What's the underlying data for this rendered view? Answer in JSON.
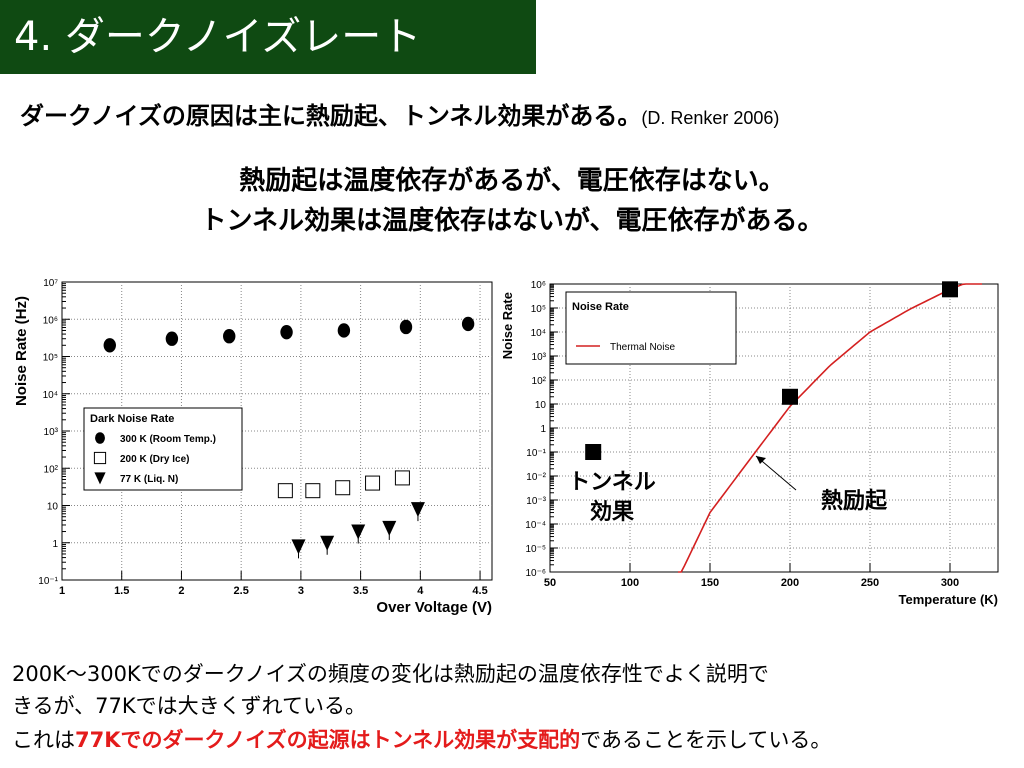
{
  "slide": {
    "title": "4. ダークノイズレート",
    "lead": "ダークノイズの原因は主に熱励起、トンネル効果がある。",
    "lead_cite": "(D. Renker 2006)",
    "line1": "熱励起は温度依存があるが、電圧依存はない。",
    "line2": "トンネル効果は温度依存はないが、電圧依存がある。",
    "bottom1": "200K～300Kでのダークノイズの頻度の変化は熱励起の温度依存性でよく説明で",
    "bottom2": "きるが、77Kでは大きくずれている。",
    "bottom3_pre": "これは",
    "bottom3_red": "77Kでのダークノイズの起源はトンネル効果が支配的",
    "bottom3_post": "であることを示している。",
    "colors": {
      "title_bg": "#0f4a12",
      "accent_red": "#e41b1b",
      "curve": "#d42020"
    }
  },
  "chart_data": [
    {
      "type": "scatter",
      "xlabel": "Over Voltage (V)",
      "ylabel": "Noise Rate (Hz)",
      "xlim": [
        1,
        4.6
      ],
      "ylim": [
        0.1,
        10000000
      ],
      "yscale": "log",
      "grid": true,
      "xticks": [
        "1",
        "1.5",
        "2",
        "2.5",
        "3",
        "3.5",
        "4",
        "4.5"
      ],
      "yticks": [
        "10⁻¹",
        "1",
        "10",
        "10²",
        "10³",
        "10⁴",
        "10⁵",
        "10⁶",
        "10⁷"
      ],
      "legend_title": "Dark Noise Rate",
      "legend_position": "middle-left",
      "series": [
        {
          "name": "300 K (Room Temp.)",
          "marker": "circle",
          "x": [
            1.4,
            1.92,
            2.4,
            2.88,
            3.36,
            3.88,
            4.4
          ],
          "y": [
            200000,
            300000,
            350000,
            450000,
            500000,
            620000,
            750000
          ]
        },
        {
          "name": "200 K (Dry Ice)",
          "marker": "square-open",
          "x": [
            2.87,
            3.1,
            3.35,
            3.6,
            3.85
          ],
          "y": [
            25,
            25,
            30,
            40,
            55
          ]
        },
        {
          "name": "77 K (Liq. N)",
          "marker": "triangle-down",
          "x": [
            2.98,
            3.22,
            3.48,
            3.74,
            3.98
          ],
          "y": [
            0.8,
            1.0,
            2.0,
            2.5,
            8.0
          ]
        }
      ]
    },
    {
      "type": "scatter",
      "xlabel": "Temperature (K)",
      "ylabel": "Noise Rate",
      "xlim": [
        50,
        330
      ],
      "ylim": [
        1e-06,
        1000000
      ],
      "yscale": "log",
      "grid": true,
      "xticks": [
        "50",
        "100",
        "150",
        "200",
        "250",
        "300"
      ],
      "yticks": [
        "10⁻⁶",
        "10⁻⁵",
        "10⁻⁴",
        "10⁻³",
        "10⁻²",
        "10⁻¹",
        "1",
        "10",
        "10²",
        "10³",
        "10⁴",
        "10⁵",
        "10⁶"
      ],
      "legend_title": "Noise Rate",
      "legend_position": "top-left",
      "series": [
        {
          "name": "Thermal Noise",
          "type": "line",
          "x": [
            130,
            150,
            175,
            200,
            225,
            250,
            275,
            300,
            320
          ],
          "y": [
            5e-07,
            0.0003,
            0.05,
            8,
            400,
            10000,
            90000,
            600000,
            2000000
          ]
        },
        {
          "marker": "square-filled",
          "x": [
            77,
            200,
            300
          ],
          "y": [
            0.1,
            20,
            600000
          ]
        }
      ],
      "annotations": [
        {
          "text": "トンネル効果",
          "target": [
            77,
            0.1
          ]
        },
        {
          "text": "熱励起",
          "target": [
            180,
            0.1
          ]
        }
      ]
    }
  ]
}
